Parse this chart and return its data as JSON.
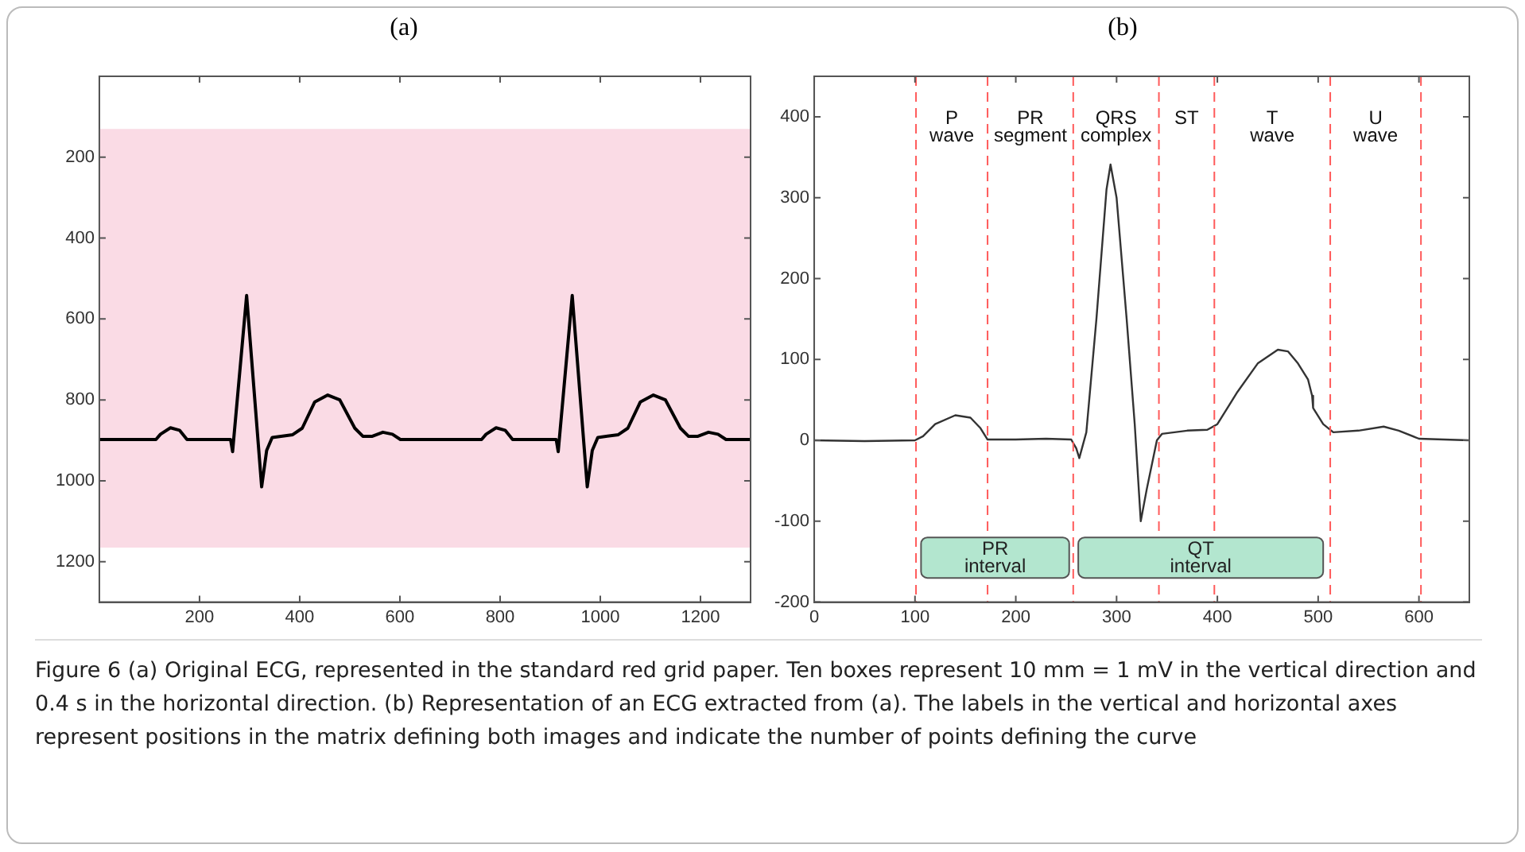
{
  "chart_data": [
    {
      "type": "line",
      "title": "(a)",
      "xlim": [
        0,
        1300
      ],
      "ylim": [
        1300,
        0
      ],
      "xticks": [
        200,
        400,
        600,
        800,
        1000,
        1200
      ],
      "yticks": [
        200,
        400,
        600,
        800,
        1000,
        1200
      ],
      "bands": [
        {
          "axis": "y",
          "from": 130,
          "to": 1165,
          "color": "#fadbe5"
        }
      ],
      "series": [
        {
          "type": "line",
          "color": "#000000",
          "x": [
            0,
            113,
            122,
            142,
            160,
            175,
            262,
            266,
            294,
            324,
            334,
            345,
            386,
            405,
            430,
            456,
            480,
            510,
            526,
            545,
            566,
            585,
            601,
            763,
            772,
            792,
            810,
            825,
            912,
            916,
            944,
            974,
            984,
            995,
            1036,
            1055,
            1080,
            1106,
            1130,
            1160,
            1176,
            1195,
            1216,
            1235,
            1251,
            1300
          ],
          "values": [
            898,
            898,
            885,
            869,
            875,
            898,
            898,
            928,
            542,
            1015,
            925,
            893,
            886,
            870,
            805,
            788,
            800,
            870,
            890,
            890,
            880,
            885,
            898,
            898,
            885,
            869,
            875,
            898,
            898,
            928,
            542,
            1015,
            925,
            893,
            886,
            870,
            805,
            788,
            800,
            870,
            890,
            890,
            880,
            885,
            898,
            898
          ]
        }
      ],
      "annotations": [
        "Figure 6  (a) Original ECG, represented in the standard red grid paper. Ten boxes represent 10 mm = 1 mV in the vertical direction and 0.4 s in the horizontal direction. (b) Representation of an ECG extracted from (a). The labels in the vertical and horizontal axes represent positions in the matrix defining both images and indicate the number of points defining the curve"
      ]
    },
    {
      "type": "line",
      "title": "(b)",
      "xlim": [
        0,
        650
      ],
      "ylim": [
        -200,
        450
      ],
      "xticks": [
        0,
        100,
        200,
        300,
        400,
        500,
        600
      ],
      "yticks": [
        -200,
        -100,
        0,
        100,
        200,
        300,
        400
      ],
      "ref_lines": [
        {
          "axis": "x",
          "value": 101,
          "color": "#ff5a5a",
          "line_style": "dashed"
        },
        {
          "axis": "x",
          "value": 172,
          "color": "#ff5a5a",
          "line_style": "dashed"
        },
        {
          "axis": "x",
          "value": 257,
          "color": "#ff5a5a",
          "line_style": "dashed"
        },
        {
          "axis": "x",
          "value": 342,
          "color": "#ff5a5a",
          "line_style": "dashed"
        },
        {
          "axis": "x",
          "value": 397,
          "color": "#ff5a5a",
          "line_style": "dashed"
        },
        {
          "axis": "x",
          "value": 512,
          "color": "#ff5a5a",
          "line_style": "dashed"
        },
        {
          "axis": "x",
          "value": 602,
          "color": "#ff5a5a",
          "line_style": "dashed"
        }
      ],
      "bands": [
        {
          "axis": "x",
          "from": 106,
          "to": 253,
          "label": "PR interval",
          "color": "#b3e6cf"
        },
        {
          "axis": "x",
          "from": 262,
          "to": 505,
          "label": "QT interval",
          "color": "#b3e6cf"
        }
      ],
      "annotations": [
        "P wave",
        "PR segment",
        "QRS complex",
        "ST",
        "T wave",
        "U wave"
      ],
      "series": [
        {
          "type": "line",
          "color": "#333333",
          "x": [
            0,
            50,
            100,
            108,
            120,
            140,
            155,
            165,
            172,
            200,
            230,
            255,
            260,
            263,
            270,
            280,
            290,
            294,
            300,
            310,
            318,
            324,
            330,
            340,
            345,
            370,
            390,
            400,
            420,
            440,
            460,
            470,
            480,
            490,
            494,
            495,
            505,
            515,
            540,
            565,
            580,
            600,
            650
          ],
          "values": [
            0,
            -1,
            0,
            5,
            20,
            31,
            28,
            15,
            1,
            1,
            2,
            1,
            -10,
            -22,
            10,
            150,
            310,
            341,
            300,
            150,
            20,
            -100,
            -60,
            0,
            8,
            12,
            13,
            20,
            60,
            95,
            112,
            110,
            95,
            75,
            55,
            40,
            20,
            10,
            12,
            17,
            12,
            2,
            0
          ]
        }
      ]
    }
  ]
}
